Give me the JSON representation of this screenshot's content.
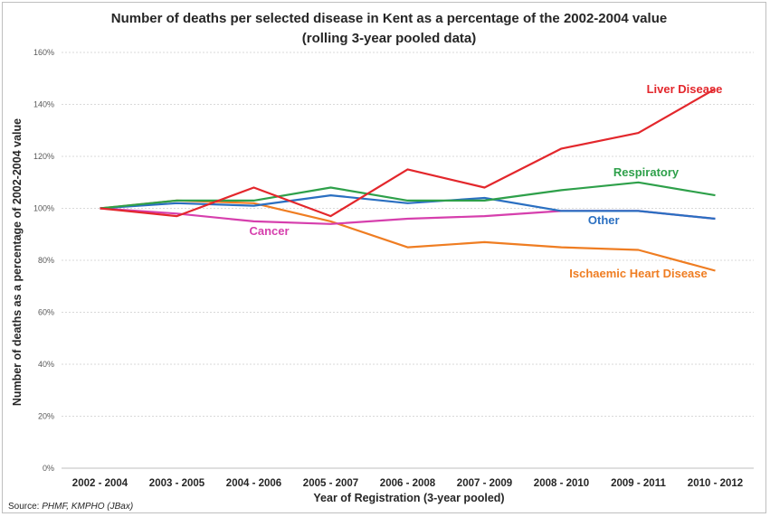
{
  "colors": {
    "liver": "#e3272c",
    "respiratory": "#2ea04a",
    "other": "#2a6fc1",
    "cancer": "#d63fad",
    "ischaemic": "#ef7d22"
  },
  "source": {
    "prefix": "Source: ",
    "text": "PHMF, KMPHO (JBax)"
  },
  "chart_data": {
    "type": "line",
    "title": "Number of deaths per selected disease in Kent as a percentage of the 2002-2004 value",
    "subtitle": "(rolling 3-year pooled data)",
    "xlabel": "Year of Registration (3-year pooled)",
    "ylabel": "Number of deaths as a percentage of 2002-2004 value",
    "ylim": [
      0,
      160
    ],
    "ytick_values": [
      0,
      20,
      40,
      60,
      80,
      100,
      120,
      140,
      160
    ],
    "ytick_labels": [
      "0%",
      "20%",
      "40%",
      "60%",
      "80%",
      "100%",
      "120%",
      "140%",
      "160%"
    ],
    "grid": true,
    "categories": [
      "2002 - 2004",
      "2003 - 2005",
      "2004 - 2006",
      "2005 - 2007",
      "2006 - 2008",
      "2007 - 2009",
      "2008 - 2010",
      "2009 - 2011",
      "2010 - 2012"
    ],
    "series": [
      {
        "name": "Liver Disease",
        "color_key": "liver",
        "values": [
          100,
          97,
          108,
          97,
          115,
          108,
          123,
          129,
          146
        ]
      },
      {
        "name": "Respiratory",
        "color_key": "respiratory",
        "values": [
          100,
          103,
          103,
          108,
          103,
          103,
          107,
          110,
          105
        ]
      },
      {
        "name": "Other",
        "color_key": "other",
        "values": [
          100,
          102,
          101,
          105,
          102,
          104,
          99,
          99,
          96
        ]
      },
      {
        "name": "Cancer",
        "color_key": "cancer",
        "values": [
          100,
          98,
          95,
          94,
          96,
          97,
          99,
          99,
          96
        ]
      },
      {
        "name": "Ischaemic Heart Disease",
        "color_key": "ischaemic",
        "values": [
          100,
          103,
          102,
          95,
          85,
          87,
          85,
          84,
          76
        ]
      }
    ]
  }
}
